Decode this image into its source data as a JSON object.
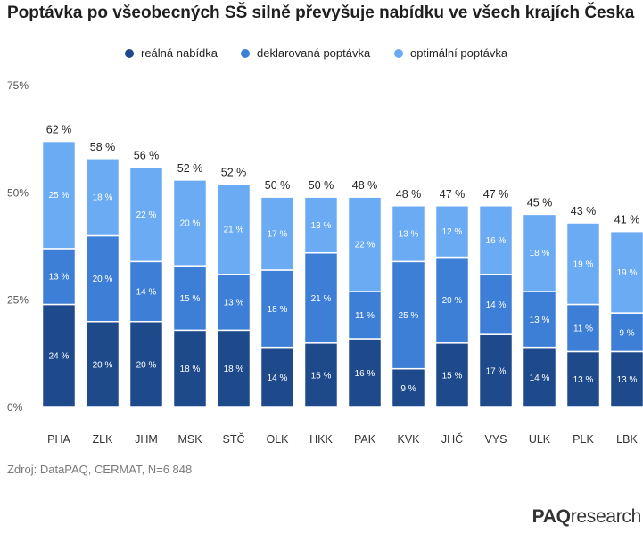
{
  "title": "Poptávka po všeobecných SŠ silně převyšuje nabídku ve všech krajích Česka",
  "source": "Zdroj: DataPAQ, CERMAT, N=6 848",
  "brand": {
    "part1": "PAQ",
    "part2": "research"
  },
  "colors": {
    "real": "#1e4a8c",
    "declared": "#3d7fd6",
    "optimal": "#6aabf3"
  },
  "legend": [
    {
      "label": "reálná nabídka",
      "color": "#1e4a8c"
    },
    {
      "label": "deklarovaná poptávka",
      "color": "#3d7fd6"
    },
    {
      "label": "optimální poptávka",
      "color": "#6aabf3"
    }
  ],
  "chart_data": {
    "type": "bar",
    "stacked": true,
    "categories": [
      "PHA",
      "ZLK",
      "JHM",
      "MSK",
      "STČ",
      "OLK",
      "HKK",
      "PAK",
      "KVK",
      "JHČ",
      "VYS",
      "ULK",
      "PLK",
      "LBK"
    ],
    "series": [
      {
        "name": "reálná nabídka",
        "values": [
          24,
          20,
          20,
          18,
          18,
          14,
          15,
          16,
          9,
          15,
          17,
          14,
          13,
          13
        ]
      },
      {
        "name": "deklarovaná poptávka",
        "values": [
          13,
          20,
          14,
          15,
          13,
          18,
          21,
          11,
          25,
          20,
          14,
          13,
          11,
          9
        ]
      },
      {
        "name": "optimální poptávka",
        "values": [
          25,
          18,
          22,
          20,
          21,
          17,
          13,
          22,
          13,
          12,
          16,
          18,
          19,
          19
        ]
      }
    ],
    "totals": [
      "62 %",
      "58 %",
      "56 %",
      "52 %",
      "52 %",
      "50 %",
      "50 %",
      "48 %",
      "48 %",
      "47 %",
      "47 %",
      "45 %",
      "43 %",
      "41 %"
    ],
    "yticks": [
      "0%",
      "25%",
      "50%",
      "75%"
    ],
    "ylim": [
      0,
      75
    ],
    "grid": false,
    "legend_position": "top"
  }
}
